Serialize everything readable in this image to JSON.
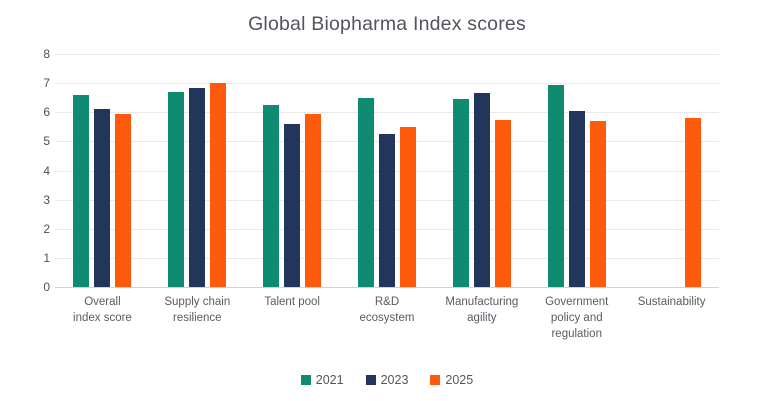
{
  "title": "Global Biopharma Index scores",
  "chart_data": {
    "type": "bar",
    "title": "Global Biopharma Index scores",
    "categories": [
      "Overall\nindex score",
      "Supply chain\nresilience",
      "Talent pool",
      "R&D\necosystem",
      "Manufacturing\nagility",
      "Government\npolicy and\nregulation",
      "Sustainability"
    ],
    "series": [
      {
        "name": "2021",
        "color": "#0F8B72",
        "values": [
          6.6,
          6.7,
          6.25,
          6.5,
          6.45,
          6.95,
          null
        ]
      },
      {
        "name": "2023",
        "color": "#22355A",
        "values": [
          6.1,
          6.85,
          5.6,
          5.25,
          6.65,
          6.05,
          null
        ]
      },
      {
        "name": "2025",
        "color": "#FD5A0C",
        "values": [
          5.95,
          7.0,
          5.95,
          5.5,
          5.75,
          5.7,
          5.8
        ]
      }
    ],
    "xlabel": "",
    "ylabel": "",
    "ylim": [
      0,
      8
    ],
    "yticks": [
      0,
      1,
      2,
      3,
      4,
      5,
      6,
      7,
      8
    ],
    "grid": true,
    "legend_position": "bottom",
    "colors": {
      "grid": "#e9e9e9",
      "axis_line": "#d2d2d2",
      "title_text": "#54545e",
      "tick_text": "#4f4f59",
      "label_text": "#5a5a64"
    }
  }
}
